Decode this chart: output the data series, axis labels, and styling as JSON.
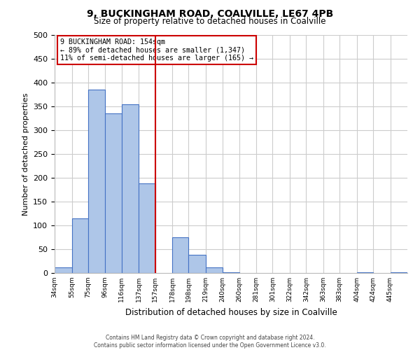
{
  "title": "9, BUCKINGHAM ROAD, COALVILLE, LE67 4PB",
  "subtitle": "Size of property relative to detached houses in Coalville",
  "xlabel": "Distribution of detached houses by size in Coalville",
  "ylabel": "Number of detached properties",
  "bin_labels": [
    "34sqm",
    "55sqm",
    "75sqm",
    "96sqm",
    "116sqm",
    "137sqm",
    "157sqm",
    "178sqm",
    "198sqm",
    "219sqm",
    "240sqm",
    "260sqm",
    "281sqm",
    "301sqm",
    "322sqm",
    "342sqm",
    "363sqm",
    "383sqm",
    "404sqm",
    "424sqm",
    "445sqm"
  ],
  "bin_edges": [
    34,
    55,
    75,
    96,
    116,
    137,
    157,
    178,
    198,
    219,
    240,
    260,
    281,
    301,
    322,
    342,
    363,
    383,
    404,
    424,
    445,
    466
  ],
  "bar_heights": [
    12,
    115,
    385,
    335,
    355,
    188,
    0,
    75,
    38,
    12,
    2,
    0,
    0,
    0,
    0,
    0,
    0,
    0,
    2,
    0,
    2
  ],
  "bar_color": "#aec6e8",
  "bar_edge_color": "#4472c4",
  "vline_x": 157,
  "vline_color": "#cc0000",
  "annotation_title": "9 BUCKINGHAM ROAD: 154sqm",
  "annotation_line1": "← 89% of detached houses are smaller (1,347)",
  "annotation_line2": "11% of semi-detached houses are larger (165) →",
  "annotation_box_color": "#cc0000",
  "ylim": [
    0,
    500
  ],
  "yticks": [
    0,
    50,
    100,
    150,
    200,
    250,
    300,
    350,
    400,
    450,
    500
  ],
  "grid_color": "#cccccc",
  "background_color": "#ffffff",
  "footer_line1": "Contains HM Land Registry data © Crown copyright and database right 2024.",
  "footer_line2": "Contains public sector information licensed under the Open Government Licence v3.0."
}
